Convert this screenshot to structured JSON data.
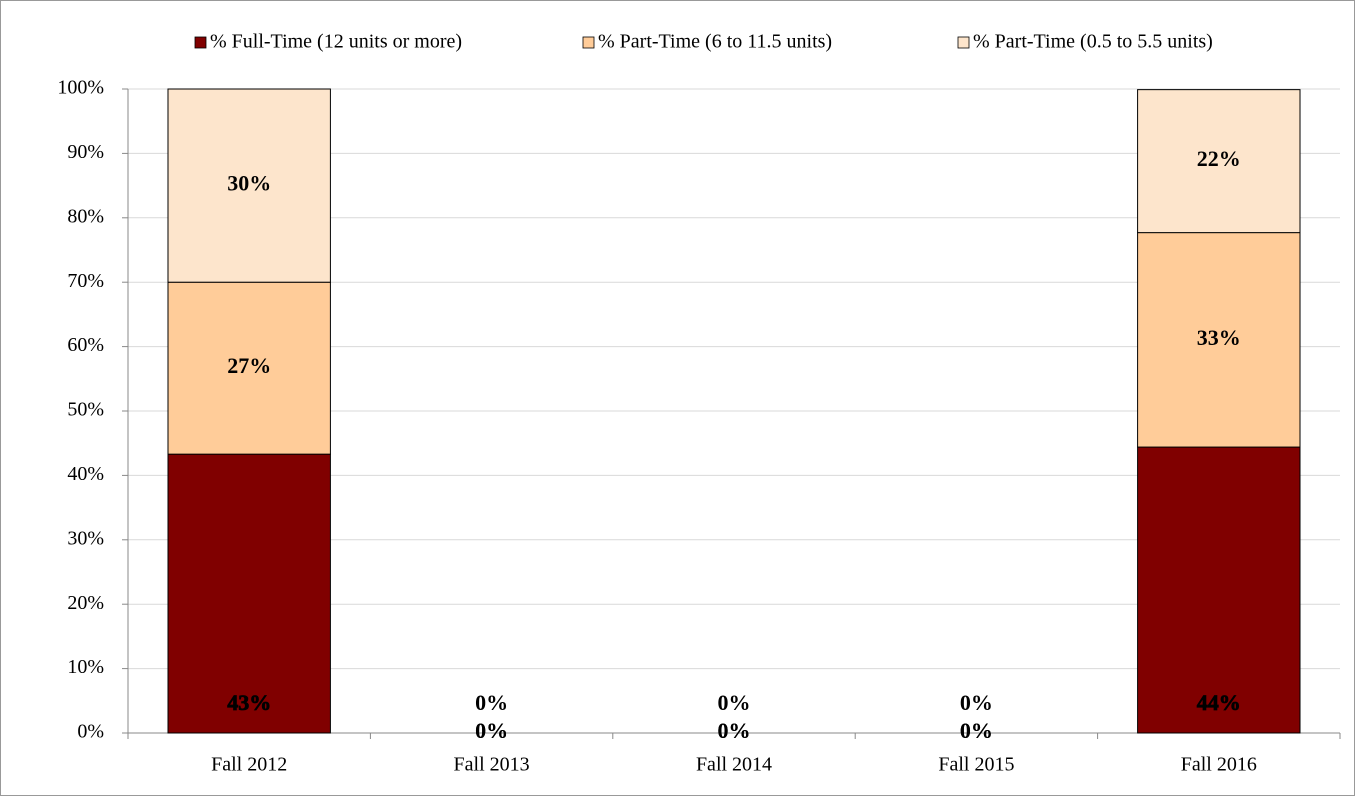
{
  "chart_data": {
    "type": "stacked_bar",
    "categories": [
      "Fall 2012",
      "Fall 2013",
      "Fall 2014",
      "Fall 2015",
      "Fall 2016"
    ],
    "series": [
      {
        "name": "% Full-Time (12 units or more)",
        "color": "#800000",
        "values": [
          43.3,
          0,
          0,
          0,
          44.4
        ],
        "value_labels": [
          "43%",
          "0%",
          "0%",
          "0%",
          "44%"
        ]
      },
      {
        "name": "% Part-Time (6 to 11.5 units)",
        "color": "#FFCC99",
        "values": [
          26.7,
          0,
          0,
          0,
          33.3
        ],
        "value_labels": [
          "27%",
          "0%",
          "0%",
          "0%",
          "33%"
        ]
      },
      {
        "name": "% Part-Time (0.5 to 5.5 units)",
        "color": "#FDE5CC",
        "values": [
          30,
          0,
          0,
          0,
          22.2
        ],
        "value_labels": [
          "30%",
          "0%",
          "0%",
          "0%",
          "22%"
        ]
      }
    ],
    "ylim": [
      0,
      100
    ],
    "yticks": [
      {
        "value": 0,
        "label": "0%"
      },
      {
        "value": 10,
        "label": "10%"
      },
      {
        "value": 20,
        "label": "20%"
      },
      {
        "value": 30,
        "label": "30%"
      },
      {
        "value": 40,
        "label": "40%"
      },
      {
        "value": 50,
        "label": "50%"
      },
      {
        "value": 60,
        "label": "60%"
      },
      {
        "value": 70,
        "label": "70%"
      },
      {
        "value": 80,
        "label": "80%"
      },
      {
        "value": 90,
        "label": "90%"
      },
      {
        "value": 100,
        "label": "100%"
      }
    ],
    "grid": true,
    "legend": "top"
  }
}
